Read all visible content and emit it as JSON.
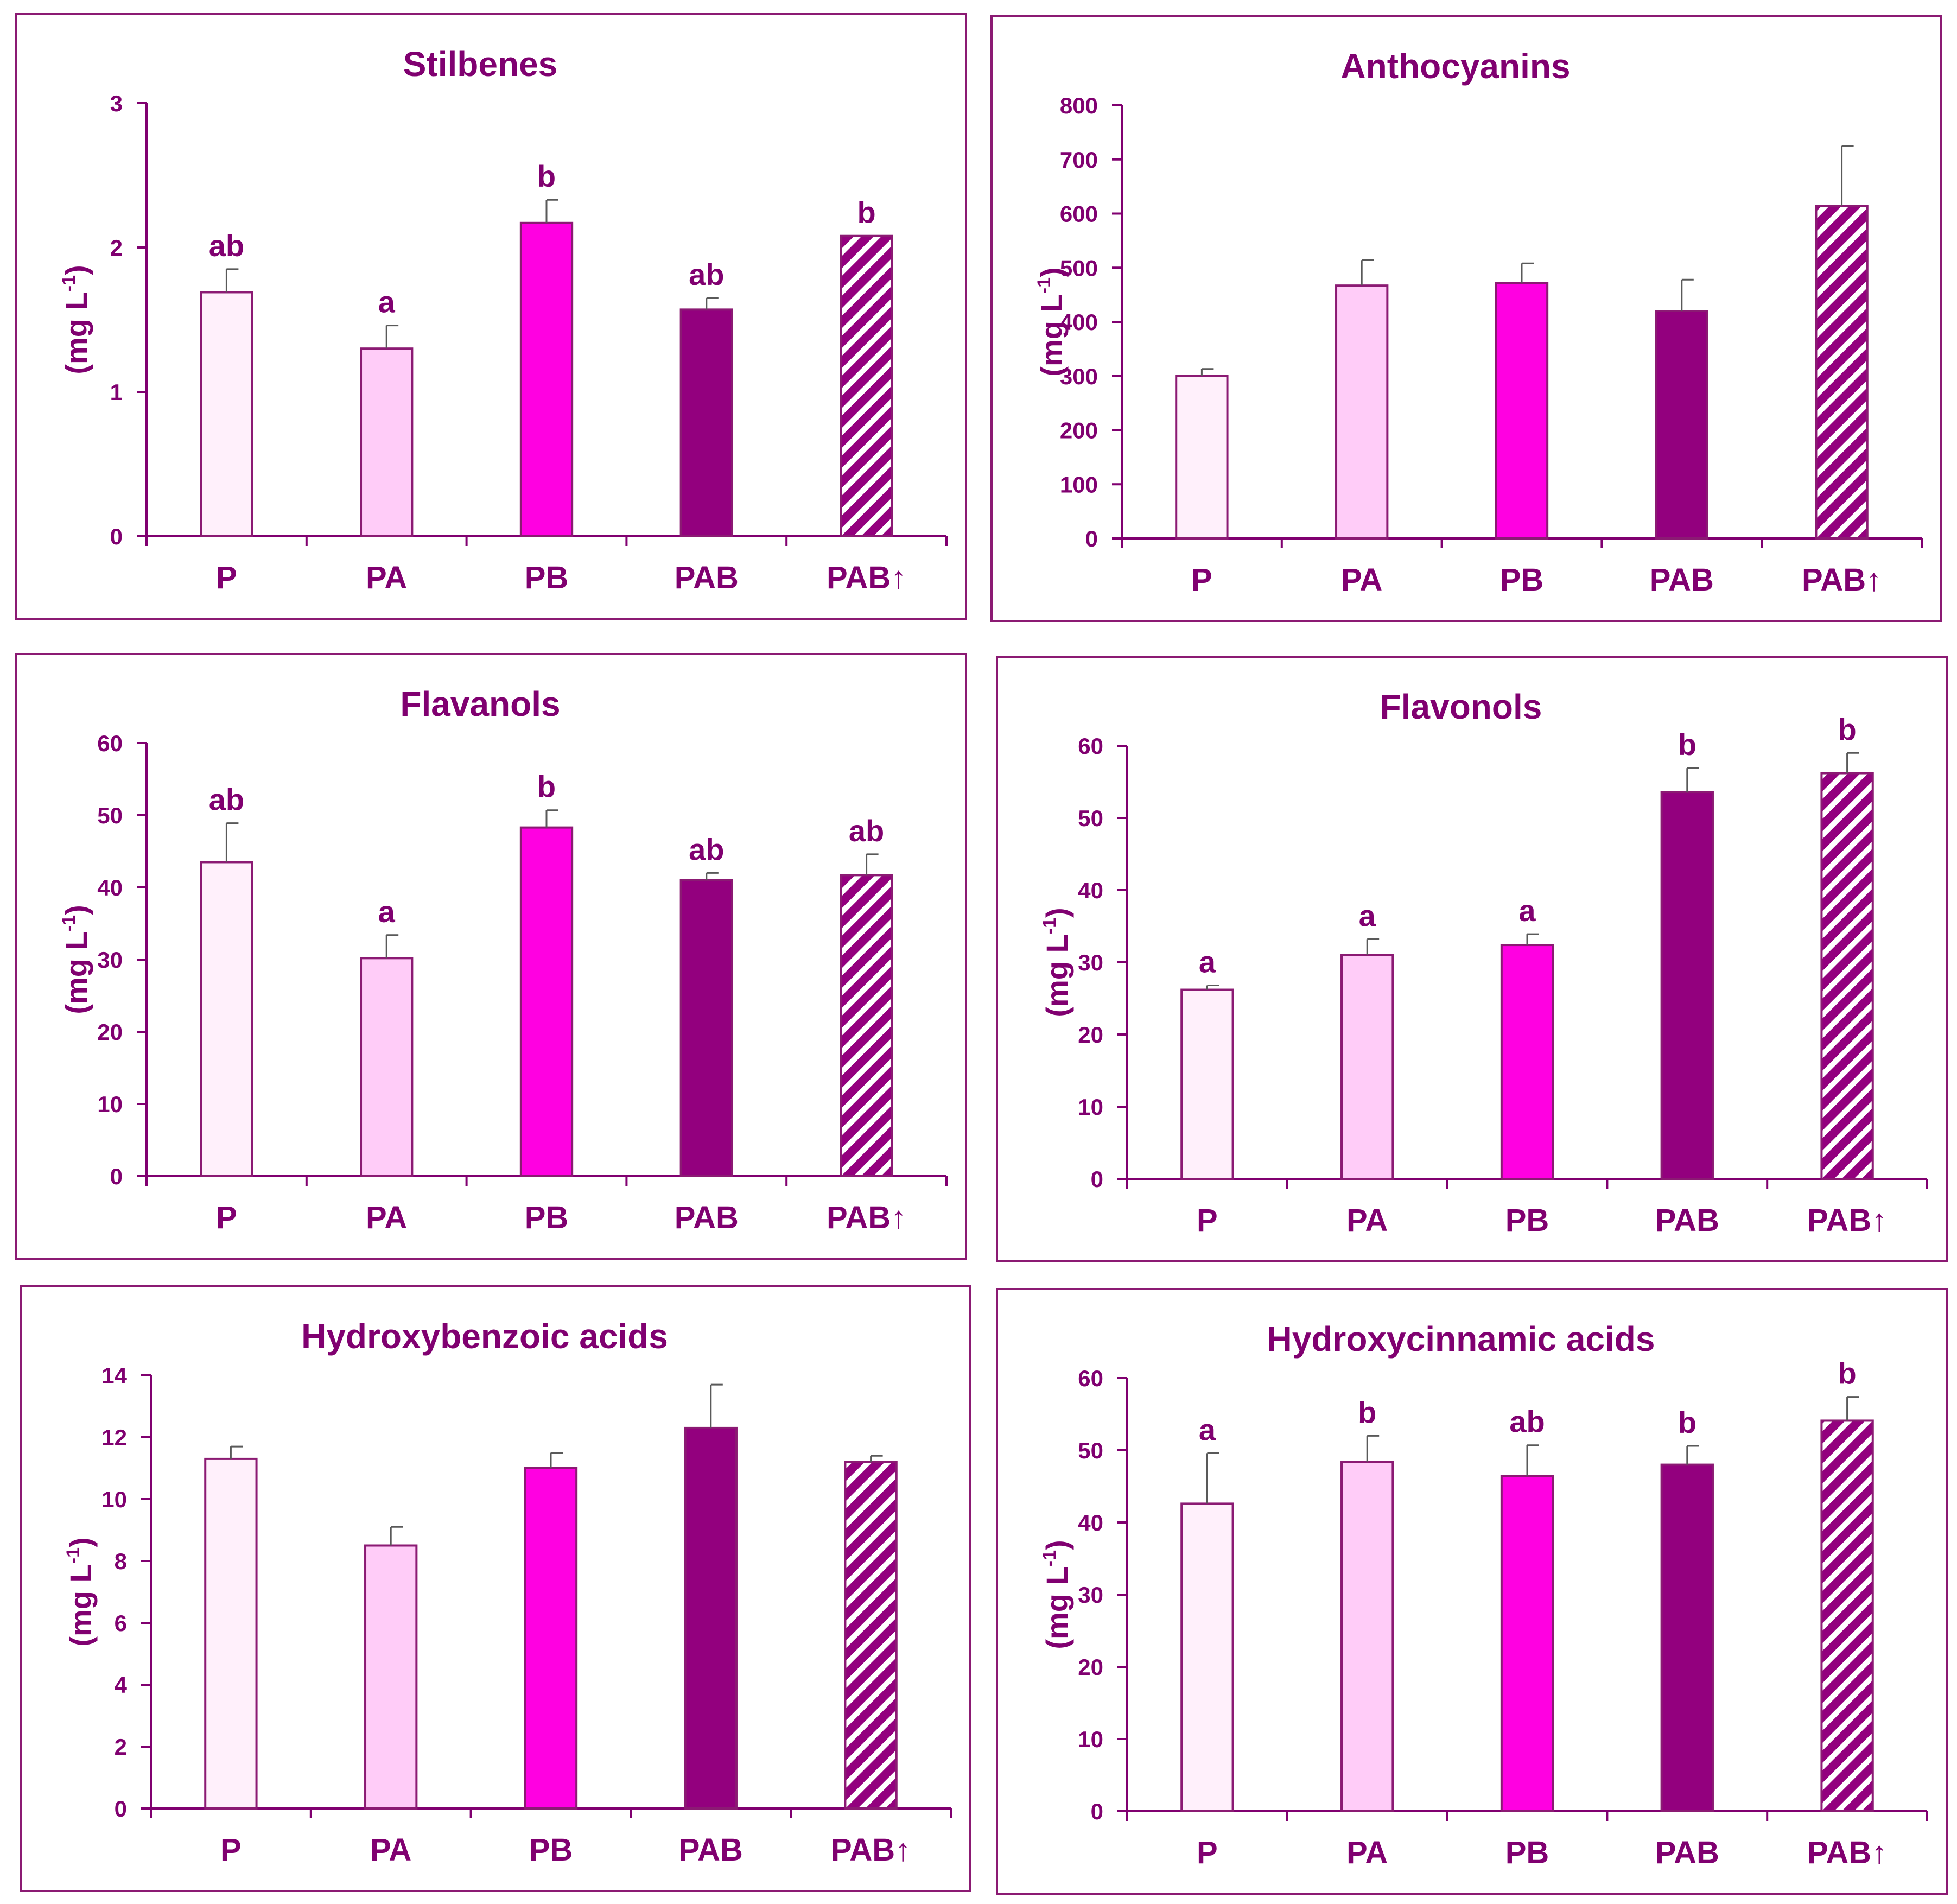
{
  "colors": {
    "frame": "#8b1a73",
    "text": "#800070",
    "error_bar": "#595959",
    "P": "#fff0fb",
    "PA": "#ffccf8",
    "PB": "#ff00e1",
    "PAB": "#93007e",
    "PAB_up_stripe": "#93007e",
    "PAB_up_stripe_alt": "#ffffff"
  },
  "chart_data": [
    {
      "type": "bar",
      "title": "Stilbenes",
      "ylabel": "(mg L",
      "ylabel_sup": "-1",
      "ylabel_close": ")",
      "categories": [
        "P",
        "PA",
        "PB",
        "PAB",
        "PAB↑"
      ],
      "values": [
        1.69,
        1.3,
        2.17,
        1.57,
        2.08
      ],
      "errors": [
        0.16,
        0.16,
        0.16,
        0.08,
        0
      ],
      "letters": [
        "ab",
        "a",
        "b",
        "ab",
        "b"
      ],
      "ylim": [
        0,
        3
      ],
      "yticks": [
        "0",
        "1",
        "2",
        "3"
      ]
    },
    {
      "type": "bar",
      "title": "Anthocyanins",
      "ylabel": "(mg L",
      "ylabel_sup": "-1",
      "ylabel_close": ")",
      "categories": [
        "P",
        "PA",
        "PB",
        "PAB",
        "PAB↑"
      ],
      "values": [
        300,
        467,
        472,
        420,
        614
      ],
      "errors": [
        13,
        47,
        36,
        58,
        111
      ],
      "letters": [
        "",
        "",
        "",
        "",
        ""
      ],
      "ylim": [
        0,
        800
      ],
      "yticks": [
        "0",
        "100",
        "200",
        "300",
        "400",
        "500",
        "600",
        "700",
        "800"
      ]
    },
    {
      "type": "bar",
      "title": "Flavanols",
      "ylabel": "(mg L",
      "ylabel_sup": "-1",
      "ylabel_close": ")",
      "categories": [
        "P",
        "PA",
        "PB",
        "PAB",
        "PAB↑"
      ],
      "values": [
        43.5,
        30.2,
        48.3,
        41.0,
        41.7
      ],
      "errors": [
        5.4,
        3.2,
        2.4,
        1.0,
        2.9
      ],
      "letters": [
        "ab",
        "a",
        "b",
        "ab",
        "ab"
      ],
      "ylim": [
        0,
        60
      ],
      "yticks": [
        "0",
        "10",
        "20",
        "30",
        "40",
        "50",
        "60"
      ]
    },
    {
      "type": "bar",
      "title": "Flavonols",
      "ylabel": "(mg L",
      "ylabel_sup": "-1",
      "ylabel_close": ")",
      "categories": [
        "P",
        "PA",
        "PB",
        "PAB",
        "PAB↑"
      ],
      "values": [
        26.2,
        31.0,
        32.4,
        53.6,
        56.2
      ],
      "errors": [
        0.6,
        2.2,
        1.5,
        3.3,
        2.8
      ],
      "letters": [
        "a",
        "a",
        "a",
        "b",
        "b"
      ],
      "ylim": [
        0,
        60
      ],
      "yticks": [
        "0",
        "10",
        "20",
        "30",
        "40",
        "50",
        "60"
      ]
    },
    {
      "type": "bar",
      "title": "Hydroxybenzoic acids",
      "ylabel": "(mg L",
      "ylabel_sup": "-1",
      "ylabel_close": ")",
      "categories": [
        "P",
        "PA",
        "PB",
        "PAB",
        "PAB↑"
      ],
      "values": [
        11.3,
        8.5,
        11.0,
        12.3,
        11.2
      ],
      "errors": [
        0.4,
        0.6,
        0.5,
        1.4,
        0.2
      ],
      "letters": [
        "",
        "",
        "",
        "",
        ""
      ],
      "ylim": [
        0,
        14
      ],
      "yticks": [
        "0",
        "2",
        "4",
        "6",
        "8",
        "10",
        "12",
        "14"
      ]
    },
    {
      "type": "bar",
      "title": "Hydroxycinnamic acids",
      "ylabel": "(mg L",
      "ylabel_sup": "-1",
      "ylabel_close": ")",
      "categories": [
        "P",
        "PA",
        "PB",
        "PAB",
        "PAB↑"
      ],
      "values": [
        42.6,
        48.4,
        46.4,
        48.0,
        54.1
      ],
      "errors": [
        7.0,
        3.6,
        4.3,
        2.6,
        3.3
      ],
      "letters": [
        "a",
        "b",
        "ab",
        "b",
        "b"
      ],
      "ylim": [
        0,
        60
      ],
      "yticks": [
        "0",
        "10",
        "20",
        "30",
        "40",
        "50",
        "60"
      ]
    }
  ]
}
